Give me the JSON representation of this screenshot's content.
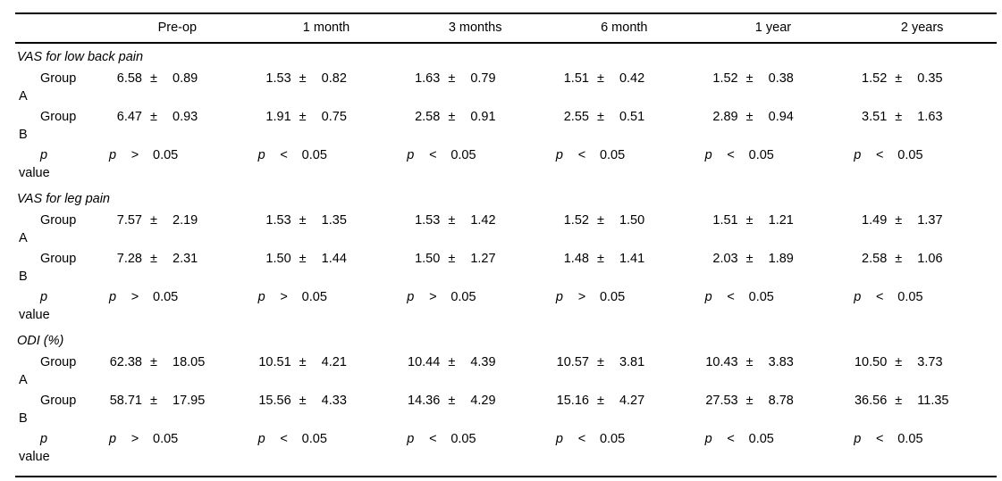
{
  "header": {
    "columns": [
      "Pre-op",
      "1 month",
      "3 months",
      "6 month",
      "1 year",
      "2 years"
    ]
  },
  "sections": [
    {
      "title": "VAS for low back pain",
      "rows": [
        {
          "type": "data",
          "label": [
            "Group",
            "A"
          ],
          "cells": [
            [
              "6.58",
              "±",
              "0.89"
            ],
            [
              "1.53",
              "±",
              "0.82"
            ],
            [
              "1.63",
              "±",
              "0.79"
            ],
            [
              "1.51",
              "±",
              "0.42"
            ],
            [
              "1.52",
              "±",
              "0.38"
            ],
            [
              "1.52",
              "±",
              "0.35"
            ]
          ]
        },
        {
          "type": "data",
          "label": [
            "Group",
            "B"
          ],
          "cells": [
            [
              "6.47",
              "±",
              "0.93"
            ],
            [
              "1.91",
              "±",
              "0.75"
            ],
            [
              "2.58",
              "±",
              "0.91"
            ],
            [
              "2.55",
              "±",
              "0.51"
            ],
            [
              "2.89",
              "±",
              "0.94"
            ],
            [
              "3.51",
              "±",
              "1.63"
            ]
          ]
        },
        {
          "type": "p",
          "label": [
            "p",
            "value"
          ],
          "cells": [
            [
              "p",
              ">",
              "0.05"
            ],
            [
              "p",
              "<",
              "0.05"
            ],
            [
              "p",
              "<",
              "0.05"
            ],
            [
              "p",
              "<",
              "0.05"
            ],
            [
              "p",
              "<",
              "0.05"
            ],
            [
              "p",
              "<",
              "0.05"
            ]
          ]
        }
      ]
    },
    {
      "title": "VAS for leg pain",
      "rows": [
        {
          "type": "data",
          "label": [
            "Group",
            "A"
          ],
          "cells": [
            [
              "7.57",
              "±",
              "2.19"
            ],
            [
              "1.53",
              "±",
              "1.35"
            ],
            [
              "1.53",
              "±",
              "1.42"
            ],
            [
              "1.52",
              "±",
              "1.50"
            ],
            [
              "1.51",
              "±",
              "1.21"
            ],
            [
              "1.49",
              "±",
              "1.37"
            ]
          ]
        },
        {
          "type": "data",
          "label": [
            "Group",
            "B"
          ],
          "cells": [
            [
              "7.28",
              "±",
              "2.31"
            ],
            [
              "1.50",
              "±",
              "1.44"
            ],
            [
              "1.50",
              "±",
              "1.27"
            ],
            [
              "1.48",
              "±",
              "1.41"
            ],
            [
              "2.03",
              "±",
              "1.89"
            ],
            [
              "2.58",
              "±",
              "1.06"
            ]
          ]
        },
        {
          "type": "p",
          "label": [
            "p",
            "value"
          ],
          "cells": [
            [
              "p",
              ">",
              "0.05"
            ],
            [
              "p",
              ">",
              "0.05"
            ],
            [
              "p",
              ">",
              "0.05"
            ],
            [
              "p",
              ">",
              "0.05"
            ],
            [
              "p",
              "<",
              "0.05"
            ],
            [
              "p",
              "<",
              "0.05"
            ]
          ]
        }
      ]
    },
    {
      "title": "ODI (%)",
      "rows": [
        {
          "type": "data",
          "label": [
            "Group",
            "A"
          ],
          "cells": [
            [
              "62.38",
              "±",
              "18.05"
            ],
            [
              "10.51",
              "±",
              "4.21"
            ],
            [
              "10.44",
              "±",
              "4.39"
            ],
            [
              "10.57",
              "±",
              "3.81"
            ],
            [
              "10.43",
              "±",
              "3.83"
            ],
            [
              "10.50",
              "±",
              "3.73"
            ]
          ]
        },
        {
          "type": "data",
          "label": [
            "Group",
            "B"
          ],
          "cells": [
            [
              "58.71",
              "±",
              "17.95"
            ],
            [
              "15.56",
              "±",
              "4.33"
            ],
            [
              "14.36",
              "±",
              "4.29"
            ],
            [
              "15.16",
              "±",
              "4.27"
            ],
            [
              "27.53",
              "±",
              "8.78"
            ],
            [
              "36.56",
              "±",
              "11.35"
            ]
          ]
        },
        {
          "type": "p",
          "label": [
            "p",
            "value"
          ],
          "cells": [
            [
              "p",
              ">",
              "0.05"
            ],
            [
              "p",
              "<",
              "0.05"
            ],
            [
              "p",
              "<",
              "0.05"
            ],
            [
              "p",
              "<",
              "0.05"
            ],
            [
              "p",
              "<",
              "0.05"
            ],
            [
              "p",
              "<",
              "0.05"
            ]
          ]
        }
      ]
    }
  ]
}
